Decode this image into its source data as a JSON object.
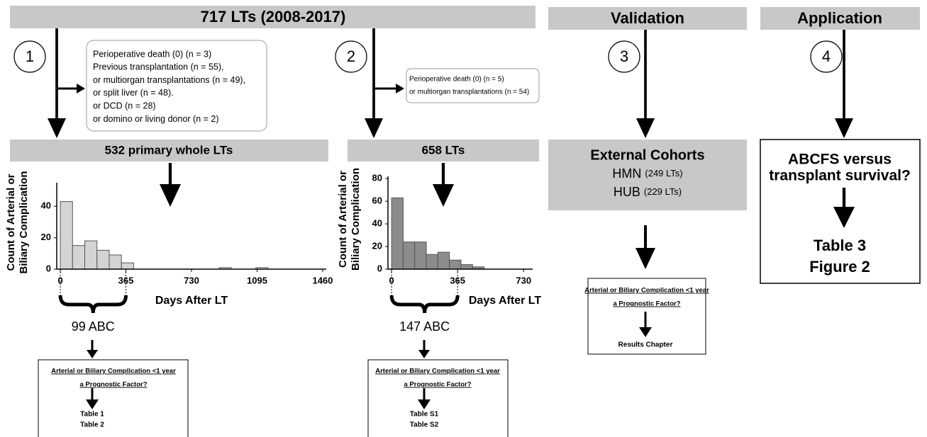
{
  "header": {
    "title": "717 LTs (2008-2017)",
    "validation": "Validation",
    "application": "Application"
  },
  "steps": [
    "1",
    "2",
    "3",
    "4"
  ],
  "exclusions": [
    [
      "Perioperative death (0) (n = 3)",
      "Previous transplantation (n = 55),",
      "or multiorgan transplantations (n = 49),",
      "or split liver (n = 48).",
      "or DCD (n = 28)",
      "or domino or living donor (n = 2)"
    ],
    [
      "Perioperative death (0) (n = 5)",
      "or multiorgan transplantations (n = 54)"
    ]
  ],
  "cohorts": [
    "532 primary whole LTs",
    "658 LTs"
  ],
  "external": {
    "title": "External Cohorts",
    "rows": [
      {
        "name": "HMN",
        "count": "(249 LTs)"
      },
      {
        "name": "HUB",
        "count": "(229 LTs)"
      }
    ]
  },
  "application": {
    "question": [
      "ABCFS versus",
      "transplant survival?"
    ],
    "outputs": [
      "Table 3",
      "Figure 2"
    ]
  },
  "histograms": [
    {
      "y_label": [
        "Count of Arterial or",
        "Biliary Complication"
      ],
      "x_label": "Days After LT",
      "xlim": [
        -20,
        1480
      ],
      "xticks": [
        0,
        365,
        730,
        1095,
        1460
      ],
      "ylim": [
        0,
        55
      ],
      "yticks": [
        0,
        20,
        40
      ],
      "color": "#d4d4d4",
      "brace_label": "99 ABC",
      "bars": [
        {
          "x0": 0,
          "x1": 68,
          "count": 43
        },
        {
          "x0": 68,
          "x1": 136,
          "count": 15
        },
        {
          "x0": 136,
          "x1": 204,
          "count": 18
        },
        {
          "x0": 204,
          "x1": 272,
          "count": 12
        },
        {
          "x0": 272,
          "x1": 340,
          "count": 9
        },
        {
          "x0": 340,
          "x1": 408,
          "count": 4
        },
        {
          "x0": 884,
          "x1": 952,
          "count": 1
        },
        {
          "x0": 1088,
          "x1": 1156,
          "count": 1
        }
      ]
    },
    {
      "y_label": [
        "Count of Arterial or",
        "Biliary Complication"
      ],
      "x_label": "Days After LT",
      "xlim": [
        -20,
        780
      ],
      "xticks": [
        0,
        365,
        730
      ],
      "ylim": [
        0,
        82
      ],
      "yticks": [
        0,
        20,
        40,
        60,
        80
      ],
      "color": "#8c8c8c",
      "brace_label": "147 ABC",
      "bars": [
        {
          "x0": 0,
          "x1": 64,
          "count": 63
        },
        {
          "x0": 64,
          "x1": 128,
          "count": 24
        },
        {
          "x0": 128,
          "x1": 192,
          "count": 24
        },
        {
          "x0": 192,
          "x1": 256,
          "count": 13
        },
        {
          "x0": 256,
          "x1": 320,
          "count": 15
        },
        {
          "x0": 320,
          "x1": 384,
          "count": 8
        },
        {
          "x0": 384,
          "x1": 448,
          "count": 4
        },
        {
          "x0": 448,
          "x1": 512,
          "count": 2
        }
      ]
    }
  ],
  "questions": [
    {
      "lines": [
        "Arterial or Biliary Complication <1 year",
        "a Prognostic Factor?"
      ],
      "outputs": [
        "Table 1",
        "Table 2"
      ]
    },
    {
      "lines": [
        "Arterial or Biliary Complication <1 year",
        "a Prognostic Factor?"
      ],
      "outputs": [
        "Table S1",
        "Table S2"
      ]
    },
    {
      "lines": [
        "Arterial or Biliary Complication <1 year",
        "a Prognostic Factor?"
      ],
      "outputs": [
        "Results Chapter"
      ]
    }
  ]
}
